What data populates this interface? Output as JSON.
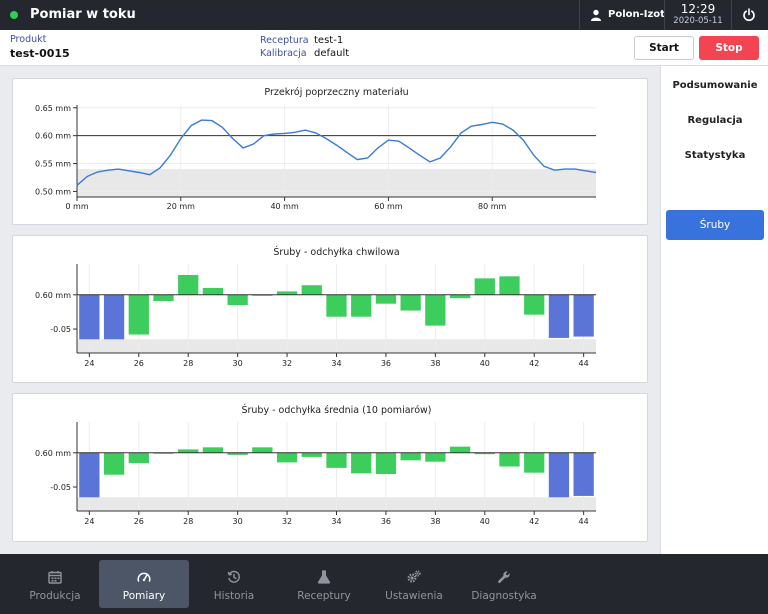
{
  "header": {
    "title": "Pomiar w toku",
    "user": "Polon-Izot",
    "time": "12:29",
    "date": "2020-05-11",
    "status_color": "#2ed14f"
  },
  "info": {
    "product_label": "Produkt",
    "product_value": "test-0015",
    "recipe_label": "Receptura",
    "recipe_value": "test-1",
    "calibration_label": "Kalibracja",
    "calibration_value": "default",
    "start_label": "Start",
    "stop_label": "Stop"
  },
  "sidebar": {
    "items": [
      "Podsumowanie",
      "Regulacja",
      "Statystyka"
    ],
    "active": "Śruby"
  },
  "nav": {
    "items": [
      {
        "label": "Produkcja",
        "icon": "calendar-icon"
      },
      {
        "label": "Pomiary",
        "icon": "gauge-icon"
      },
      {
        "label": "Historia",
        "icon": "history-icon"
      },
      {
        "label": "Receptury",
        "icon": "flask-icon"
      },
      {
        "label": "Ustawienia",
        "icon": "gears-icon"
      },
      {
        "label": "Diagnostyka",
        "icon": "wrench-icon"
      }
    ],
    "active_index": 1
  },
  "colors": {
    "line": "#3a7bd5",
    "bar_green": "#3ccd5d",
    "bar_blue": "#5b74d8",
    "band": "#e8e8e8"
  },
  "chart_data": [
    {
      "type": "line",
      "title": "Przekrój poprzeczny materiału",
      "y_tick_labels": [
        "0.65 mm",
        "0.60 mm",
        "0.55 mm",
        "0.50 mm"
      ],
      "y_ticks": [
        0.65,
        0.6,
        0.55,
        0.5
      ],
      "x_tick_labels": [
        "0 mm",
        "20 mm",
        "40 mm",
        "60 mm",
        "80 mm"
      ],
      "x_ticks": [
        0,
        20,
        40,
        60,
        80
      ],
      "xlim": [
        0,
        100
      ],
      "ylim": [
        0.49,
        0.655
      ],
      "reference_line": 0.6,
      "tolerance_band": [
        0.49,
        0.54
      ],
      "x": [
        0,
        2,
        4,
        6,
        8,
        10,
        12,
        14,
        16,
        18,
        20,
        22,
        24,
        26,
        28,
        30,
        32,
        34,
        36,
        38,
        40,
        42,
        44,
        46,
        48,
        50,
        52,
        54,
        56,
        58,
        60,
        62,
        64,
        66,
        68,
        70,
        72,
        74,
        76,
        78,
        80,
        82,
        84,
        86,
        88,
        90,
        92,
        94,
        96,
        98,
        100
      ],
      "y": [
        0.511,
        0.527,
        0.535,
        0.538,
        0.54,
        0.537,
        0.534,
        0.53,
        0.542,
        0.565,
        0.595,
        0.618,
        0.628,
        0.627,
        0.615,
        0.595,
        0.578,
        0.585,
        0.6,
        0.603,
        0.604,
        0.606,
        0.61,
        0.605,
        0.595,
        0.583,
        0.57,
        0.557,
        0.56,
        0.578,
        0.592,
        0.59,
        0.578,
        0.565,
        0.553,
        0.56,
        0.58,
        0.605,
        0.617,
        0.62,
        0.624,
        0.621,
        0.61,
        0.592,
        0.565,
        0.545,
        0.538,
        0.54,
        0.54,
        0.537,
        0.534
      ]
    },
    {
      "type": "bar",
      "title": "Śruby - odchyłka chwilowa",
      "y_tick_labels": [
        "0.60 mm",
        "-0.05"
      ],
      "x_tick_labels": [
        "24",
        "26",
        "28",
        "30",
        "32",
        "34",
        "36",
        "38",
        "40",
        "42",
        "44"
      ],
      "categories": [
        24,
        25,
        26,
        27,
        28,
        29,
        30,
        31,
        32,
        33,
        34,
        35,
        36,
        37,
        38,
        39,
        40,
        41,
        42,
        43,
        44
      ],
      "ylim": [
        -0.085,
        0.045
      ],
      "tolerance_band": [
        -0.085,
        -0.065
      ],
      "values": [
        -0.065,
        -0.065,
        -0.058,
        -0.009,
        0.029,
        0.01,
        -0.015,
        -0.001,
        0.005,
        0.014,
        -0.032,
        -0.032,
        -0.013,
        -0.023,
        -0.045,
        -0.005,
        0.024,
        0.027,
        -0.029,
        -0.063,
        -0.061
      ],
      "colors": [
        "blue",
        "blue",
        "green",
        "green",
        "green",
        "green",
        "green",
        "green",
        "green",
        "green",
        "green",
        "green",
        "green",
        "green",
        "green",
        "green",
        "green",
        "green",
        "green",
        "blue",
        "blue"
      ]
    },
    {
      "type": "bar",
      "title": "Śruby - odchyłka średnia (10 pomiarów)",
      "y_tick_labels": [
        "0.60 mm",
        "-0.05"
      ],
      "x_tick_labels": [
        "24",
        "26",
        "28",
        "30",
        "32",
        "34",
        "36",
        "38",
        "40",
        "42",
        "44"
      ],
      "categories": [
        24,
        25,
        26,
        27,
        28,
        29,
        30,
        31,
        32,
        33,
        34,
        35,
        36,
        37,
        38,
        39,
        40,
        41,
        42,
        43,
        44
      ],
      "ylim": [
        -0.085,
        0.045
      ],
      "tolerance_band": [
        -0.085,
        -0.065
      ],
      "values": [
        -0.065,
        -0.032,
        -0.015,
        -0.001,
        0.005,
        0.008,
        -0.003,
        0.008,
        -0.014,
        -0.006,
        -0.022,
        -0.03,
        -0.031,
        -0.011,
        -0.013,
        0.009,
        -0.002,
        -0.02,
        -0.029,
        -0.065,
        -0.063
      ],
      "colors": [
        "blue",
        "green",
        "green",
        "green",
        "green",
        "green",
        "green",
        "green",
        "green",
        "green",
        "green",
        "green",
        "green",
        "green",
        "green",
        "green",
        "green",
        "green",
        "green",
        "blue",
        "blue"
      ]
    }
  ]
}
